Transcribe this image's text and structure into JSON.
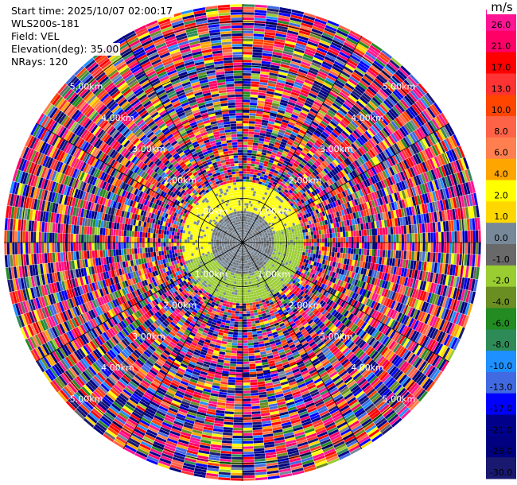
{
  "header": {
    "start_time": "Start time: 2025/10/07 02:00:17",
    "instrument": "WLS200s-181",
    "field": "Field: VEL",
    "elevation": "Elevation(deg): 35.00",
    "nrays": "NRays: 120"
  },
  "chart_data": {
    "type": "heatmap",
    "projection": "polar-ppi",
    "field": "VEL",
    "units": "m/s",
    "n_rays": 120,
    "elevation_deg": 35.0,
    "range_rings_km": [
      1.0,
      2.0,
      3.0,
      4.0,
      5.0
    ],
    "ring_labels": [
      "1.00km",
      "2.00km",
      "3.00km",
      "4.00km",
      "5.00km"
    ],
    "max_range_km": 5.4,
    "spokes_deg": [
      0,
      30,
      60,
      90,
      120,
      150,
      180,
      210,
      240,
      270,
      300,
      330
    ],
    "inner_valid_range_km": 1.35,
    "inner_region_summary": [
      {
        "region": "north/west near field",
        "velocity_ms": 3.0
      },
      {
        "region": "south/east near field",
        "velocity_ms": -1.5
      },
      {
        "region": "core",
        "velocity_ms": 0.0
      }
    ],
    "outer_region": "noisy returns spanning full scale",
    "colorbar": {
      "unit_label": "m/s",
      "ticks": [
        "26.0",
        "21.0",
        "17.0",
        "13.0",
        "10.0",
        "8.0",
        "6.0",
        "4.0",
        "2.0",
        "1.0",
        "0.0",
        "-1.0",
        "-2.0",
        "-4.0",
        "-6.0",
        "-8.0",
        "-10.0",
        "-13.0",
        "-17.0",
        "-21.0",
        "-26.0",
        "-30.0"
      ],
      "colors": [
        "#ff1493",
        "#ff0066",
        "#ff0000",
        "#ff3333",
        "#ff4500",
        "#ff6347",
        "#ff7f50",
        "#ffa500",
        "#ffff00",
        "#ffd700",
        "#778899",
        "#696969",
        "#9acd32",
        "#6b8e23",
        "#228b22",
        "#2e8b57",
        "#1e90ff",
        "#4169e1",
        "#0000ff",
        "#00008b",
        "#000080",
        "#191970"
      ]
    }
  }
}
